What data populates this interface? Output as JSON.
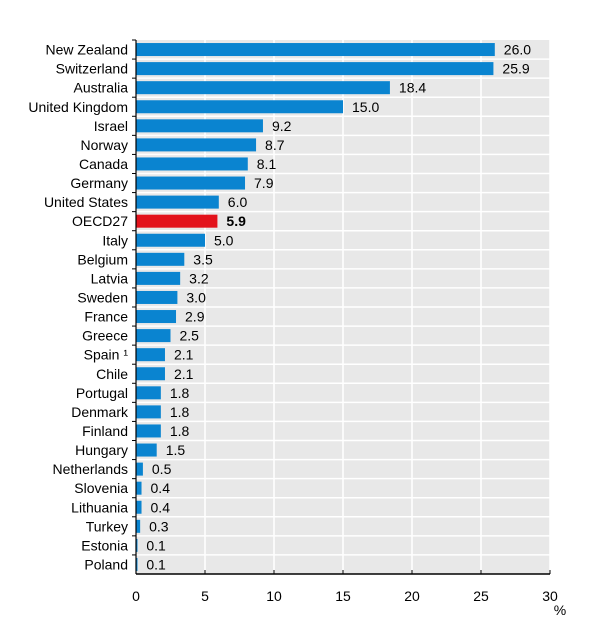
{
  "chart_data": {
    "type": "bar",
    "orientation": "horizontal",
    "title": "",
    "xlabel": "%",
    "ylabel": "",
    "xlim": [
      0,
      30
    ],
    "xticks": [
      0,
      5,
      10,
      15,
      20,
      25,
      30
    ],
    "grid": true,
    "categories": [
      "New Zealand",
      "Switzerland",
      "Australia",
      "United Kingdom",
      "Israel",
      "Norway",
      "Canada",
      "Germany",
      "United States",
      "OECD27",
      "Italy",
      "Belgium",
      "Latvia",
      "Sweden",
      "France",
      "Greece",
      "Spain ¹",
      "Chile",
      "Portugal",
      "Denmark",
      "Finland",
      "Hungary",
      "Netherlands",
      "Slovenia",
      "Lithuania",
      "Turkey",
      "Estonia",
      "Poland"
    ],
    "values": [
      26.0,
      25.9,
      18.4,
      15.0,
      9.2,
      8.7,
      8.1,
      7.9,
      6.0,
      5.9,
      5.0,
      3.5,
      3.2,
      3.0,
      2.9,
      2.5,
      2.1,
      2.1,
      1.8,
      1.8,
      1.8,
      1.5,
      0.5,
      0.4,
      0.4,
      0.3,
      0.1,
      0.1
    ],
    "highlight": "OECD27",
    "colors": {
      "bar": "#0a84d0",
      "highlight": "#e3121b",
      "background": "#e8e8e8"
    }
  }
}
